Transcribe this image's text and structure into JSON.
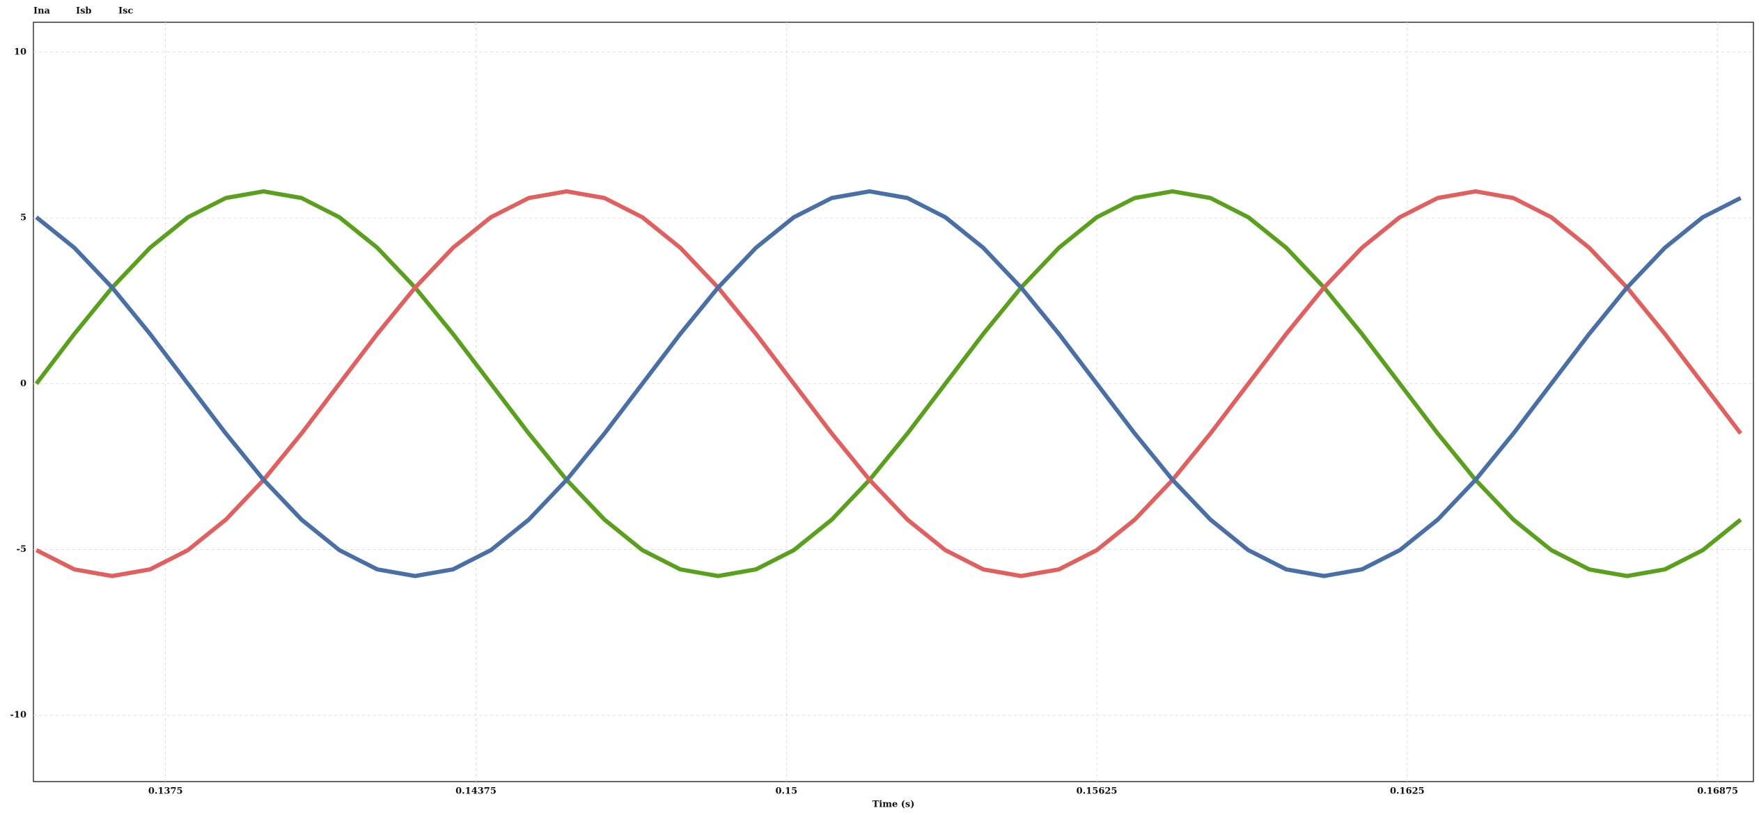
{
  "chart_data": {
    "type": "line",
    "xlabel": "Time (s)",
    "x": [
      0.1349,
      0.135663,
      0.136425,
      0.137188,
      0.13795,
      0.138713,
      0.139475,
      0.140238,
      0.141,
      0.141763,
      0.142525,
      0.143288,
      0.14405,
      0.144813,
      0.145575,
      0.146338,
      0.1471,
      0.147863,
      0.148625,
      0.149388,
      0.15015,
      0.150913,
      0.151675,
      0.152438,
      0.1532,
      0.153963,
      0.154725,
      0.155488,
      0.15625,
      0.157013,
      0.157775,
      0.158538,
      0.1593,
      0.160063,
      0.160825,
      0.161588,
      0.16235,
      0.163113,
      0.163875,
      0.164638,
      0.1654,
      0.166163,
      0.166925,
      0.167688,
      0.16845,
      0.169213
    ],
    "series": [
      {
        "name": "Ina",
        "color": "#5aa01e",
        "values": [
          0,
          1.5,
          2.9,
          4.1,
          5.02,
          5.6,
          5.8,
          5.6,
          5.02,
          4.1,
          2.9,
          1.5,
          0,
          -1.5,
          -2.9,
          -4.1,
          -5.02,
          -5.6,
          -5.8,
          -5.6,
          -5.02,
          -4.1,
          -2.9,
          -1.5,
          0,
          1.5,
          2.9,
          4.1,
          5.02,
          5.6,
          5.8,
          5.6,
          5.02,
          4.1,
          2.9,
          1.5,
          0,
          -1.5,
          -2.9,
          -4.1,
          -5.02,
          -5.6,
          -5.8,
          -5.6,
          -5.02,
          -4.1
        ]
      },
      {
        "name": "Isb",
        "color": "#e0605f",
        "values": [
          -5.02,
          -5.6,
          -5.8,
          -5.6,
          -5.02,
          -4.1,
          -2.9,
          -1.5,
          0,
          1.5,
          2.9,
          4.1,
          5.02,
          5.6,
          5.8,
          5.6,
          5.02,
          4.1,
          2.9,
          1.5,
          0,
          -1.5,
          -2.9,
          -4.1,
          -5.02,
          -5.6,
          -5.8,
          -5.6,
          -5.02,
          -4.1,
          -2.9,
          -1.5,
          0,
          1.5,
          2.9,
          4.1,
          5.02,
          5.6,
          5.8,
          5.6,
          5.02,
          4.1,
          2.9,
          1.5,
          0,
          -1.5
        ]
      },
      {
        "name": "Isc",
        "color": "#4a6fa5",
        "values": [
          5.02,
          4.1,
          2.9,
          1.5,
          0,
          -1.5,
          -2.9,
          -4.1,
          -5.02,
          -5.6,
          -5.8,
          -5.6,
          -5.02,
          -4.1,
          -2.9,
          -1.5,
          0,
          1.5,
          2.9,
          4.1,
          5.02,
          5.6,
          5.8,
          5.6,
          5.02,
          4.1,
          2.9,
          1.5,
          0,
          -1.5,
          -2.9,
          -4.1,
          -5.02,
          -5.6,
          -5.8,
          -5.6,
          -5.02,
          -4.1,
          -2.9,
          -1.5,
          0,
          1.5,
          2.9,
          4.1,
          5.02,
          5.6
        ]
      }
    ],
    "xlim": [
      0.13484,
      0.16947
    ],
    "xticks": [
      0.1375,
      0.14375,
      0.15,
      0.15625,
      0.1625,
      0.16875
    ],
    "ylim": [
      -12,
      10.9
    ],
    "yticks": [
      -10,
      -5,
      0,
      5,
      10
    ],
    "grid": true
  }
}
